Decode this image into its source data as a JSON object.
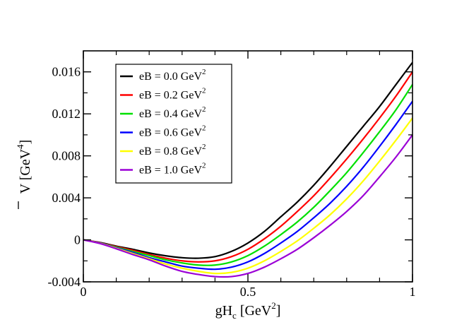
{
  "chart_data": {
    "type": "line",
    "title": "",
    "xlabel": {
      "base": "gH",
      "sub": "c",
      "unit_open": " [GeV",
      "unit_sup": "2",
      "unit_close": "]"
    },
    "ylabel": {
      "base": "V",
      "unit_open": " [GeV",
      "unit_sup": "4",
      "unit_close": "]"
    },
    "xlim": [
      0,
      1
    ],
    "ylim": [
      -0.004,
      0.018
    ],
    "xticks": [
      0,
      0.5,
      1
    ],
    "xtick_labels": [
      "0",
      "0.5",
      "1"
    ],
    "yticks": [
      -0.004,
      0,
      0.004,
      0.008,
      0.012,
      0.016
    ],
    "ytick_labels": [
      "-0.004",
      "0",
      "0.004",
      "0.008",
      "0.012",
      "0.016"
    ],
    "legend_position": "top-left",
    "x": [
      0,
      0.05,
      0.1,
      0.15,
      0.2,
      0.25,
      0.3,
      0.35,
      0.4,
      0.45,
      0.5,
      0.55,
      0.6,
      0.65,
      0.7,
      0.75,
      0.8,
      0.85,
      0.9,
      0.95,
      1.0
    ],
    "series": [
      {
        "name": "eB = 0.0 GeV",
        "sup": "2",
        "color": "#000000",
        "values": [
          0,
          -0.00025,
          -0.0006,
          -0.0009,
          -0.00125,
          -0.00152,
          -0.0017,
          -0.00175,
          -0.0016,
          -0.0011,
          -0.0003,
          0.0008,
          0.0022,
          0.0036,
          0.0052,
          0.007,
          0.0089,
          0.0108,
          0.0127,
          0.0148,
          0.0169
        ]
      },
      {
        "name": "eB = 0.2 GeV",
        "sup": "2",
        "color": "#ff0000",
        "values": [
          0,
          -0.00027,
          -0.00065,
          -0.001,
          -0.0014,
          -0.00175,
          -0.002,
          -0.0021,
          -0.002,
          -0.0016,
          -0.0009,
          0.0001,
          0.0013,
          0.0027,
          0.0042,
          0.0059,
          0.0077,
          0.0096,
          0.0116,
          0.0137,
          0.016
        ]
      },
      {
        "name": "eB = 0.4 GeV",
        "sup": "2",
        "color": "#00e000",
        "values": [
          0,
          -0.0003,
          -0.0007,
          -0.0011,
          -0.0015,
          -0.0019,
          -0.0022,
          -0.0024,
          -0.0024,
          -0.0021,
          -0.0015,
          -0.0006,
          0.0005,
          0.0017,
          0.0031,
          0.0047,
          0.0064,
          0.0083,
          0.0103,
          0.0124,
          0.0148
        ]
      },
      {
        "name": "eB = 0.6 GeV",
        "sup": "2",
        "color": "#0000ff",
        "values": [
          0,
          -0.0003,
          -0.00075,
          -0.0012,
          -0.0017,
          -0.0021,
          -0.0025,
          -0.0027,
          -0.0028,
          -0.0026,
          -0.0021,
          -0.0013,
          -0.0003,
          0.0008,
          0.0021,
          0.0035,
          0.0051,
          0.0069,
          0.0089,
          0.011,
          0.0132
        ]
      },
      {
        "name": "eB = 0.8 GeV",
        "sup": "2",
        "color": "#ffff00",
        "values": [
          0,
          -0.00032,
          -0.0008,
          -0.0013,
          -0.0018,
          -0.0023,
          -0.0027,
          -0.003,
          -0.0032,
          -0.0031,
          -0.0027,
          -0.002,
          -0.0011,
          -0.0001,
          0.0011,
          0.0024,
          0.0039,
          0.0056,
          0.0075,
          0.0095,
          0.0116
        ]
      },
      {
        "name": "eB = 1.0 GeV",
        "sup": "2",
        "color": "#9b00d6",
        "values": [
          0,
          -0.00035,
          -0.00085,
          -0.0014,
          -0.0019,
          -0.0025,
          -0.003,
          -0.0033,
          -0.0035,
          -0.0035,
          -0.0032,
          -0.0026,
          -0.0018,
          -0.0009,
          0.0002,
          0.0014,
          0.0027,
          0.0042,
          0.006,
          0.0079,
          0.01
        ]
      }
    ]
  }
}
